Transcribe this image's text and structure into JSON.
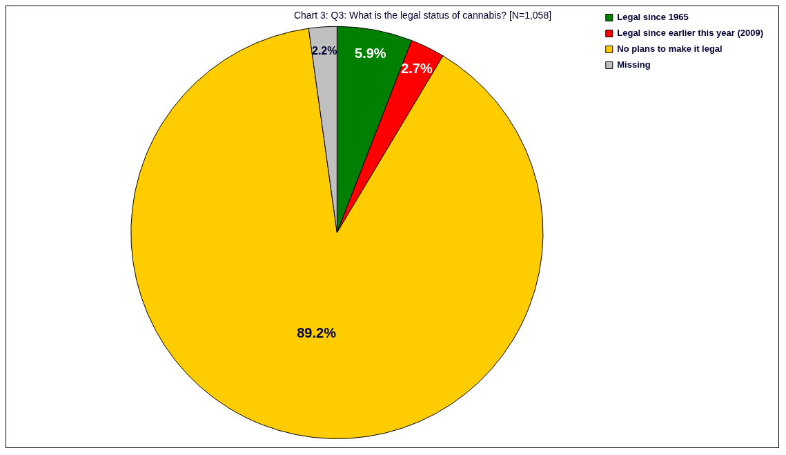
{
  "chart_data": {
    "type": "pie",
    "title": "Chart 3: Q3: What is the legal status of cannabis? [N=1,058]",
    "categories": [
      "Legal since 1965",
      "Legal since earlier this year (2009)",
      "No plans to make it legal",
      "Missing"
    ],
    "values": [
      5.9,
      2.7,
      89.2,
      2.2
    ],
    "colors": [
      "#008000",
      "#ff0000",
      "#ffcc00",
      "#c0c0c0"
    ],
    "value_labels": [
      "5.9%",
      "2.7%",
      "89.2%",
      "2.2%"
    ],
    "legend": "top right"
  }
}
